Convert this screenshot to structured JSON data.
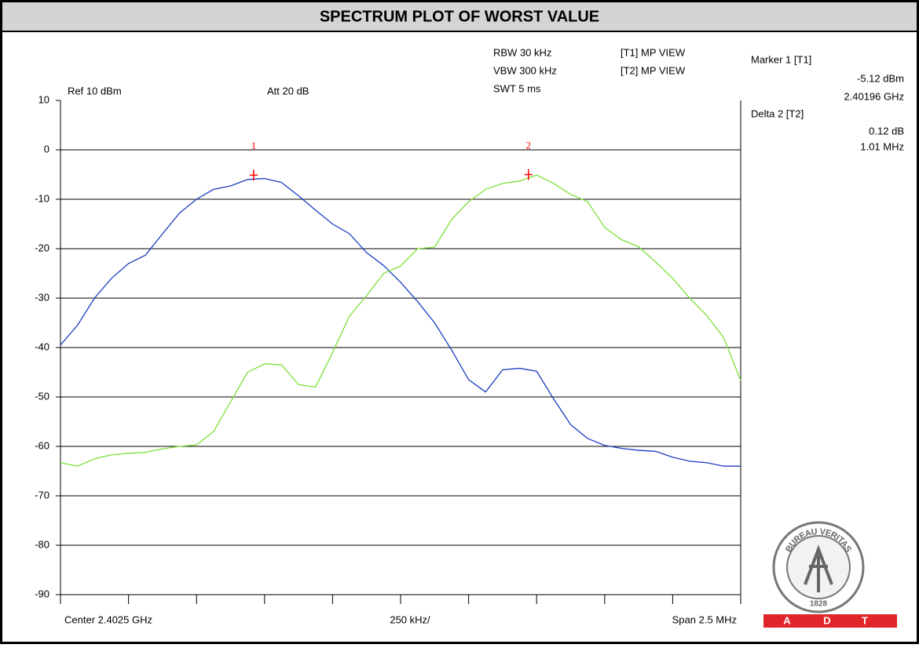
{
  "chart_data": {
    "type": "line",
    "title": "SPECTRUM PLOT OF WORST VALUE",
    "settings_text": {
      "rbw": "RBW 30 kHz",
      "vbw": "VBW 300 kHz",
      "swt": "SWT 5 ms",
      "t1": "[T1] MP VIEW",
      "t2": "[T2] MP VIEW",
      "ref": "Ref 10 dBm",
      "att": "Att  20 dB"
    },
    "readout": {
      "marker_title": "Marker 1 [T1]",
      "marker_level": "-5.12 dBm",
      "marker_freq": "2.40196 GHz",
      "delta_title": "Delta 2 [T2]",
      "delta_level": "0.12 dB",
      "delta_freq": "1.01 MHz"
    },
    "x_labels": {
      "center": "Center 2.4025 GHz",
      "div": "250 kHz/",
      "span": "Span 2.5 MHz"
    },
    "logo": {
      "ring": "BUREAU VERITAS",
      "year": "1828",
      "letters": [
        "A",
        "D",
        "T"
      ]
    },
    "xlim": [
      2.40125,
      2.40375
    ],
    "xticks": [
      2.40125,
      2.4015,
      2.40175,
      2.402,
      2.40225,
      2.4025,
      2.40275,
      2.403,
      2.40325,
      2.4035,
      2.40375
    ],
    "ylim": [
      -90,
      10
    ],
    "yticks": [
      10,
      0,
      -10,
      -20,
      -30,
      -40,
      -50,
      -60,
      -70,
      -80,
      -90
    ],
    "grid": true,
    "x": [
      2.40125,
      2.4013125,
      2.401375,
      2.4014375,
      2.4015,
      2.4015625,
      2.401625,
      2.4016875,
      2.40175,
      2.4018125,
      2.401875,
      2.4019375,
      2.402,
      2.4020625,
      2.402125,
      2.4021875,
      2.40225,
      2.4023125,
      2.402375,
      2.4024375,
      2.4025,
      2.4025625,
      2.402625,
      2.4026875,
      2.40275,
      2.4028125,
      2.402875,
      2.4029375,
      2.403,
      2.4030625,
      2.403125,
      2.4031875,
      2.40325,
      2.4033125,
      2.403375,
      2.4034375,
      2.4035,
      2.4035625,
      2.403625,
      2.4036875,
      2.40375
    ],
    "series": [
      {
        "name": "T1",
        "color": "#1e3cc0",
        "values": [
          -39.5,
          -35.5,
          -30,
          -26,
          -23,
          -21.3,
          -17,
          -12.8,
          -10,
          -8,
          -7.3,
          -6,
          -5.8,
          -6.6,
          -9.3,
          -12.2,
          -15,
          -17,
          -20.8,
          -23.4,
          -26.8,
          -30.7,
          -35,
          -40.5,
          -46.5,
          -49,
          -44.5,
          -44.2,
          -44.8,
          -50.4,
          -55.6,
          -58.4,
          -59.8,
          -60.4,
          -60.8,
          -61,
          -62.2,
          -63,
          -63.3,
          -64,
          -64
        ]
      },
      {
        "name": "T2",
        "color": "#7de03a",
        "values": [
          -63.3,
          -64,
          -62.5,
          -61.7,
          -61.4,
          -61.2,
          -60.5,
          -60,
          -59.7,
          -57,
          -51,
          -45,
          -43.3,
          -43.5,
          -47.5,
          -48,
          -41,
          -33.6,
          -29.5,
          -25,
          -23.5,
          -20,
          -19.7,
          -14.1,
          -10.5,
          -8,
          -6.8,
          -6.3,
          -5.1,
          -6.8,
          -9,
          -10.5,
          -15.7,
          -18.2,
          -19.6,
          -22.7,
          -26,
          -30,
          -33.5,
          -38,
          -46.7
        ]
      }
    ],
    "markers": [
      {
        "label": "1",
        "x": 2.40196,
        "y": -5.12,
        "color": "#ff0000"
      },
      {
        "label": "2",
        "x": 2.40297,
        "y": -5.0,
        "color": "#ff0000"
      }
    ]
  }
}
